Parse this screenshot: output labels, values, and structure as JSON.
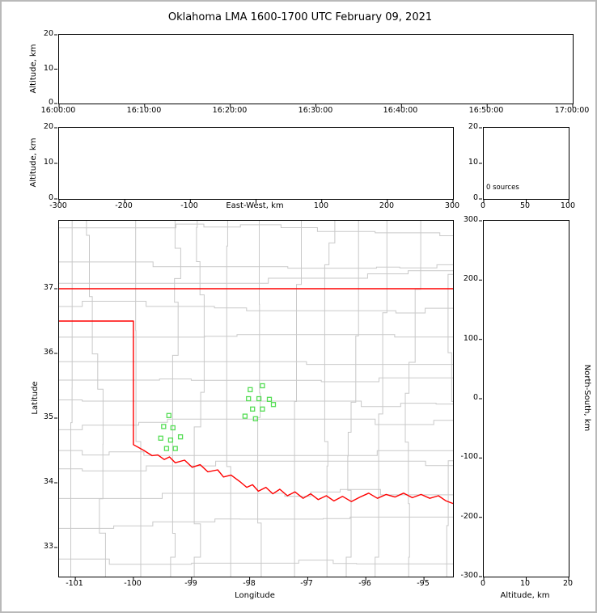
{
  "title": "Oklahoma LMA 1600-1700 UTC February 09, 2021",
  "panels": {
    "time_height": {
      "ylabel": "Altitude, km",
      "yticks": [
        "20",
        "10",
        "0"
      ],
      "xticks": [
        "16:00:00",
        "16:10:00",
        "16:20:00",
        "16:30:00",
        "16:40:00",
        "16:50:00",
        "17:00:00"
      ]
    },
    "ew_height": {
      "ylabel": "Altitude, km",
      "xlabel": "East-West, km",
      "yticks": [
        "20",
        "10",
        "0"
      ],
      "xticks": [
        "-300",
        "-200",
        "-100",
        "100",
        "200",
        "300"
      ]
    },
    "histogram": {
      "yticks": [
        "20",
        "10",
        "0"
      ],
      "xticks": [
        "0",
        "50",
        "100"
      ],
      "annotation": "0 sources"
    },
    "map": {
      "ylabel": "Latitude",
      "xlabel": "Longitude",
      "yticks": [
        "37",
        "36",
        "35",
        "34",
        "33"
      ],
      "xticks": [
        "-101",
        "-100",
        "-99",
        "-98",
        "-97",
        "-96",
        "-95"
      ]
    },
    "ns_height": {
      "ylabel_right": "North-South, km",
      "xlabel": "Altitude, km",
      "yticks": [
        "300",
        "200",
        "100",
        "0",
        "-100",
        "-200",
        "-300"
      ],
      "xticks": [
        "0",
        "10",
        "20"
      ]
    }
  },
  "colors": {
    "state_border": "#ff0000",
    "county_lines": "#c9c9c9",
    "stations": "#55dd55",
    "axis_frame": "#000000",
    "figure_border": "#b9b9b9"
  },
  "chart_data": [
    {
      "id": "altitude_vs_time",
      "type": "scatter",
      "ylabel": "Altitude, km",
      "ylim": [
        0,
        20
      ],
      "yticks": [
        0,
        10,
        20
      ],
      "xticks": [
        "16:00:00",
        "16:10:00",
        "16:20:00",
        "16:30:00",
        "16:40:00",
        "16:50:00",
        "17:00:00"
      ],
      "points": []
    },
    {
      "id": "altitude_vs_east_west",
      "type": "scatter",
      "xlabel": "East-West, km",
      "ylabel": "Altitude, km",
      "xlim": [
        -300,
        300
      ],
      "ylim": [
        0,
        20
      ],
      "xticks": [
        -300,
        -200,
        -100,
        100,
        200,
        300
      ],
      "yticks": [
        0,
        10,
        20
      ],
      "points": []
    },
    {
      "id": "source_count_histogram",
      "type": "histogram",
      "xlim": [
        0,
        100
      ],
      "ylim": [
        0,
        20
      ],
      "xticks": [
        0,
        50,
        100
      ],
      "yticks": [
        0,
        10,
        20
      ],
      "annotation": "0 sources",
      "values": []
    },
    {
      "id": "plan_view_map",
      "type": "map",
      "xlabel": "Longitude",
      "ylabel": "Latitude",
      "xlim": [
        -101.28,
        -94.5
      ],
      "ylim": [
        32.55,
        38.05
      ],
      "xticks": [
        -101,
        -100,
        -99,
        -98,
        -97,
        -96,
        -95
      ],
      "yticks": [
        33,
        34,
        35,
        36,
        37
      ],
      "stations": [
        [
          -97.78,
          35.5
        ],
        [
          -97.99,
          35.44
        ],
        [
          -98.02,
          35.3
        ],
        [
          -97.84,
          35.3
        ],
        [
          -97.66,
          35.29
        ],
        [
          -97.95,
          35.14
        ],
        [
          -97.78,
          35.14
        ],
        [
          -97.59,
          35.21
        ],
        [
          -97.9,
          34.99
        ],
        [
          -98.08,
          35.03
        ],
        [
          -99.39,
          35.04
        ],
        [
          -99.48,
          34.87
        ],
        [
          -99.32,
          34.85
        ],
        [
          -99.53,
          34.69
        ],
        [
          -99.36,
          34.66
        ],
        [
          -99.19,
          34.71
        ],
        [
          -99.43,
          34.53
        ],
        [
          -99.28,
          34.53
        ]
      ],
      "state_border": {
        "oklahoma_kansas_37N": [
          [
            -101.28,
            37.0
          ],
          [
            -94.5,
            37.0
          ]
        ],
        "panhandle_west_and_red_river": [
          [
            -101.28,
            36.5
          ],
          [
            -100.0,
            36.5
          ],
          [
            -100.0,
            34.59
          ],
          [
            -99.82,
            34.5
          ],
          [
            -99.68,
            34.42
          ],
          [
            -99.58,
            34.43
          ],
          [
            -99.47,
            34.36
          ],
          [
            -99.38,
            34.4
          ],
          [
            -99.28,
            34.31
          ],
          [
            -99.12,
            34.35
          ],
          [
            -98.99,
            34.24
          ],
          [
            -98.85,
            34.28
          ],
          [
            -98.72,
            34.17
          ],
          [
            -98.55,
            34.2
          ],
          [
            -98.45,
            34.09
          ],
          [
            -98.32,
            34.12
          ],
          [
            -98.17,
            34.02
          ],
          [
            -98.05,
            33.93
          ],
          [
            -97.95,
            33.97
          ],
          [
            -97.85,
            33.87
          ],
          [
            -97.72,
            33.93
          ],
          [
            -97.6,
            33.83
          ],
          [
            -97.48,
            33.9
          ],
          [
            -97.35,
            33.8
          ],
          [
            -97.22,
            33.86
          ],
          [
            -97.08,
            33.76
          ],
          [
            -96.95,
            33.83
          ],
          [
            -96.82,
            33.74
          ],
          [
            -96.68,
            33.8
          ],
          [
            -96.55,
            33.72
          ],
          [
            -96.4,
            33.79
          ],
          [
            -96.25,
            33.71
          ],
          [
            -96.1,
            33.78
          ],
          [
            -95.95,
            33.84
          ],
          [
            -95.8,
            33.76
          ],
          [
            -95.65,
            33.82
          ],
          [
            -95.5,
            33.78
          ],
          [
            -95.35,
            33.84
          ],
          [
            -95.2,
            33.77
          ],
          [
            -95.05,
            33.82
          ],
          [
            -94.9,
            33.76
          ],
          [
            -94.75,
            33.8
          ],
          [
            -94.62,
            33.72
          ],
          [
            -94.5,
            33.68
          ]
        ]
      }
    },
    {
      "id": "north_south_vs_altitude",
      "type": "scatter",
      "xlabel": "Altitude, km",
      "ylabel": "North-South, km",
      "xlim": [
        0,
        20
      ],
      "ylim": [
        -300,
        300
      ],
      "xticks": [
        0,
        10,
        20
      ],
      "yticks": [
        -300,
        -200,
        -100,
        0,
        100,
        200,
        300
      ],
      "points": []
    }
  ]
}
